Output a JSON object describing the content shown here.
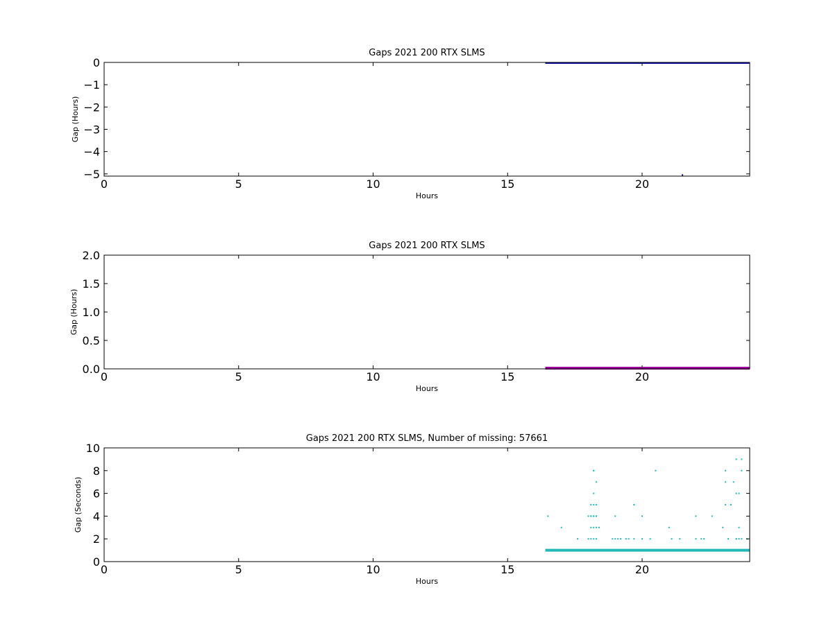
{
  "chart_data": [
    {
      "type": "scatter",
      "title": "Gaps 2021 200 RTX  SLMS",
      "xlabel": "Hours",
      "ylabel": "Gap (Hours)",
      "xlim": [
        0,
        24
      ],
      "ylim": [
        -5.1,
        0
      ],
      "xticks": [
        0,
        5,
        10,
        15,
        20
      ],
      "yticks": [
        0,
        -1,
        -2,
        -3,
        -4,
        -5
      ],
      "grid": false,
      "color": "#0000a0",
      "series": [
        {
          "kind": "band",
          "x_start": 16.4,
          "x_end": 24.0,
          "y": -0.01
        },
        {
          "kind": "points",
          "x": [
            21.5
          ],
          "y": [
            -5.05
          ]
        }
      ]
    },
    {
      "type": "scatter",
      "title": "Gaps 2021 200 RTX  SLMS",
      "xlabel": "Hours",
      "ylabel": "Gap (Hours)",
      "xlim": [
        0,
        24
      ],
      "ylim": [
        0,
        2.0
      ],
      "xticks": [
        0,
        5,
        10,
        15,
        20
      ],
      "yticks": [
        0.0,
        0.5,
        1.0,
        1.5,
        2.0
      ],
      "grid": false,
      "color": "#a000a0",
      "series": [
        {
          "kind": "band",
          "x_start": 16.4,
          "x_end": 24.0,
          "y": 0.01
        }
      ]
    },
    {
      "type": "scatter",
      "title": "Gaps 2021 200 RTX  SLMS, Number of missing: 57661",
      "xlabel": "Hours",
      "ylabel": "Gap (Seconds)",
      "xlim": [
        0,
        24
      ],
      "ylim": [
        0,
        10
      ],
      "xticks": [
        0,
        5,
        10,
        15,
        20
      ],
      "yticks": [
        0,
        2,
        4,
        6,
        8,
        10
      ],
      "grid": false,
      "color": "#20b8b8",
      "series": [
        {
          "kind": "band",
          "x_start": 16.4,
          "x_end": 24.0,
          "y": 1
        },
        {
          "kind": "points",
          "x": [
            16.5,
            17.0,
            17.6,
            18.0,
            18.1,
            18.2,
            18.3,
            18.1,
            18.2,
            18.3,
            18.0,
            18.1,
            18.2,
            18.3,
            18.4,
            18.1,
            18.2,
            18.3,
            18.1,
            18.2,
            18.3,
            18.2,
            18.3,
            18.2,
            18.2,
            18.9,
            19.0,
            19.1,
            19.2,
            19.4,
            19.5,
            19.7,
            20.0,
            20.3,
            19.0,
            19.7,
            20.0,
            20.5,
            21.0,
            21.1,
            21.4,
            22.0,
            22.2,
            22.3,
            22.6,
            22.0,
            23.0,
            23.2,
            23.5,
            23.7,
            23.9,
            23.1,
            23.3,
            23.1,
            23.4,
            23.5,
            23.6,
            23.1,
            23.5,
            23.7,
            23.5,
            23.6,
            23.6,
            23.7
          ],
          "y": [
            4,
            3,
            2,
            2,
            2,
            2,
            2,
            3,
            3,
            3,
            4,
            4,
            4,
            4,
            3,
            5,
            5,
            5,
            4,
            4,
            4,
            6,
            7,
            8,
            8,
            2,
            2,
            2,
            2,
            2,
            2,
            2,
            2,
            2,
            4,
            5,
            4,
            8,
            3,
            2,
            2,
            2,
            2,
            2,
            4,
            4,
            3,
            2,
            2,
            2,
            2,
            5,
            5,
            7,
            7,
            6,
            6,
            8,
            9,
            9,
            2,
            2,
            3,
            8
          ]
        }
      ]
    }
  ]
}
